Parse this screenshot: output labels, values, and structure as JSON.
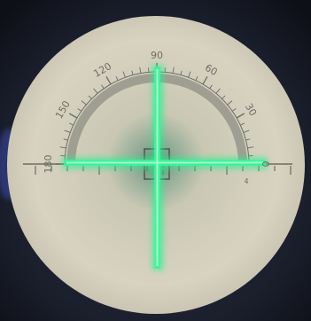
{
  "scene": {
    "description_free": true,
    "protractor": {
      "angle_labels": [
        "180",
        "150",
        "120",
        "90",
        "60",
        "30",
        "0"
      ],
      "visible_range_deg": [
        0,
        180
      ],
      "major_step_deg": 30,
      "minor_step_deg": 5
    },
    "scale_bar": {
      "marks": [
        "4"
      ]
    },
    "colors": {
      "background_dark": "#1e2333",
      "field": "#d4cfbd",
      "field_center": "#7e9d8a",
      "ink": "#6d6c66",
      "crosshair": "#28f08f",
      "crosshair_core": "#b6ffd8",
      "blue_tint": "#3a4aa8"
    }
  }
}
